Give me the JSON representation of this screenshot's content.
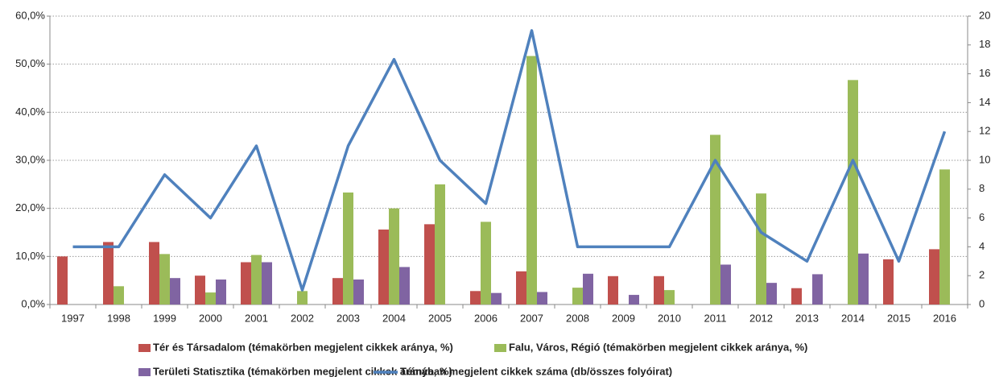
{
  "chart_data": {
    "type": "bar",
    "categories": [
      "1997",
      "1998",
      "1999",
      "2000",
      "2001",
      "2002",
      "2003",
      "2004",
      "2005",
      "2006",
      "2007",
      "2008",
      "2009",
      "2010",
      "2011",
      "2012",
      "2013",
      "2014",
      "2015",
      "2016"
    ],
    "series": [
      {
        "name": "Tér és Társadalom (témakörben megjelent cikkek aránya, %)",
        "color": "#c0504d",
        "type": "bar",
        "values": [
          10.0,
          13.0,
          13.0,
          6.0,
          8.8,
          0,
          5.5,
          15.6,
          16.7,
          2.8,
          6.9,
          0,
          5.9,
          5.9,
          0,
          0,
          3.4,
          0,
          9.4,
          11.5
        ]
      },
      {
        "name": "Falu, Város, Régió (témakörben megjelent cikkek aránya, %)",
        "color": "#9bbb59",
        "type": "bar",
        "values": [
          0,
          3.8,
          10.5,
          2.5,
          10.3,
          2.8,
          23.3,
          20.0,
          25.0,
          17.2,
          51.7,
          3.5,
          0,
          3.0,
          35.3,
          23.1,
          0,
          46.7,
          0,
          28.1
        ]
      },
      {
        "name": "Területi Statisztika (témakörben megjelent cikkek aránya, %)",
        "color": "#8064a2",
        "type": "bar",
        "values": [
          0,
          0,
          5.5,
          5.2,
          8.8,
          0,
          5.2,
          7.8,
          0,
          2.4,
          2.6,
          6.4,
          2.0,
          0,
          8.3,
          4.5,
          6.3,
          10.6,
          0,
          0
        ]
      },
      {
        "name": "Témában megjelent cikkek száma (db/összes folyóirat)",
        "color": "#4f81bd",
        "type": "line",
        "axis": "y2",
        "values": [
          4,
          4,
          9,
          6,
          11,
          1,
          11,
          17,
          10,
          7,
          19,
          4,
          4,
          4,
          10,
          5,
          3,
          10,
          3,
          12
        ]
      }
    ],
    "ylim": [
      0,
      60
    ],
    "yticks": [
      {
        "value": 0,
        "label": "0,0%"
      },
      {
        "value": 10,
        "label": "10,0%"
      },
      {
        "value": 20,
        "label": "20,0%"
      },
      {
        "value": 30,
        "label": "30,0%"
      },
      {
        "value": 40,
        "label": "40,0%"
      },
      {
        "value": 50,
        "label": "50,0%"
      },
      {
        "value": 60,
        "label": "60,0%"
      }
    ],
    "y2lim": [
      0,
      20
    ],
    "y2ticks": [
      0,
      2,
      4,
      6,
      8,
      10,
      12,
      14,
      16,
      18,
      20
    ],
    "grid": true,
    "legend": "bottom"
  }
}
